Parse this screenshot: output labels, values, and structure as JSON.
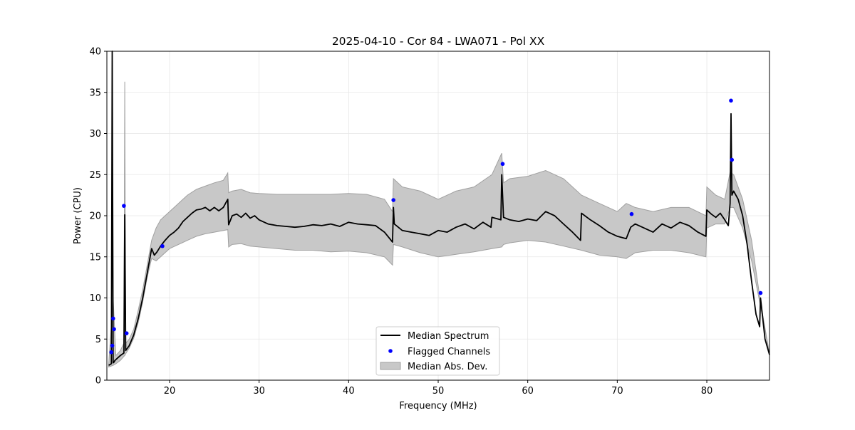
{
  "chart_data": {
    "type": "line",
    "title": "2025-04-10 - Cor 84 - LWA071 - Pol XX",
    "xlabel": "Frequency (MHz)",
    "ylabel": "Power (CPU)",
    "xlim": [
      13.0,
      87.0
    ],
    "ylim": [
      0,
      40
    ],
    "xticks": [
      20,
      30,
      40,
      50,
      60,
      70,
      80
    ],
    "yticks": [
      0,
      5,
      10,
      15,
      20,
      25,
      30,
      35,
      40
    ],
    "grid": true,
    "legend_position": "lower-center",
    "legend": [
      "Median Spectrum",
      "Flagged Channels",
      "Median Abs. Dev."
    ],
    "colors": {
      "median": "#000000",
      "flagged": "#0000ff",
      "mad": "#c8c8c8",
      "mad_edge": "#a0a0a0"
    },
    "series": [
      {
        "name": "Median Spectrum",
        "x": [
          13.2,
          13.5,
          13.6,
          13.7,
          13.8,
          13.9,
          14.0,
          14.2,
          14.5,
          14.9,
          15.0,
          15.1,
          15.5,
          16.0,
          16.5,
          17.0,
          17.5,
          18.0,
          18.3,
          18.6,
          19.0,
          19.5,
          20.0,
          20.5,
          21.0,
          21.5,
          22.0,
          22.5,
          23.0,
          23.5,
          24.0,
          24.5,
          25.0,
          25.5,
          26.0,
          26.5,
          26.6,
          27.0,
          27.5,
          28.0,
          28.5,
          29.0,
          29.5,
          30.0,
          31.0,
          32.0,
          33.0,
          34.0,
          35.0,
          36.0,
          37.0,
          38.0,
          39.0,
          40.0,
          41.0,
          42.0,
          43.0,
          44.0,
          44.9,
          45.0,
          45.1,
          46.0,
          47.0,
          48.0,
          49.0,
          50.0,
          51.0,
          52.0,
          53.0,
          54.0,
          55.0,
          55.9,
          56.0,
          57.0,
          57.1,
          57.3,
          58.0,
          59.0,
          60.0,
          61.0,
          62.0,
          63.0,
          64.0,
          65.0,
          65.9,
          66.0,
          67.0,
          68.0,
          69.0,
          70.0,
          71.0,
          71.5,
          72.0,
          73.0,
          74.0,
          75.0,
          76.0,
          77.0,
          78.0,
          79.0,
          79.9,
          80.0,
          80.5,
          81.0,
          81.5,
          82.0,
          82.4,
          82.6,
          82.7,
          82.8,
          83.0,
          83.5,
          84.0,
          84.5,
          85.0,
          85.5,
          85.9,
          86.0,
          86.5,
          87.0
        ],
        "y": [
          1.8,
          2.0,
          40.0,
          2.1,
          2.2,
          2.4,
          2.5,
          2.7,
          3.0,
          3.3,
          20.1,
          3.6,
          4.2,
          5.5,
          7.5,
          10.0,
          13.0,
          16.0,
          15.2,
          15.6,
          16.3,
          17.0,
          17.6,
          18.0,
          18.5,
          19.3,
          19.8,
          20.3,
          20.7,
          20.8,
          21.0,
          20.6,
          21.0,
          20.6,
          21.0,
          22.0,
          18.9,
          20.0,
          20.2,
          19.8,
          20.3,
          19.7,
          20.0,
          19.5,
          19.0,
          18.8,
          18.7,
          18.6,
          18.7,
          18.9,
          18.8,
          19.0,
          18.7,
          19.2,
          19.0,
          18.9,
          18.8,
          18.0,
          16.8,
          21.0,
          19.0,
          18.2,
          18.0,
          17.8,
          17.6,
          18.2,
          18.0,
          18.6,
          19.0,
          18.4,
          19.2,
          18.6,
          19.8,
          19.5,
          25.0,
          19.8,
          19.5,
          19.3,
          19.6,
          19.4,
          20.5,
          20.0,
          19.0,
          18.0,
          17.0,
          20.3,
          19.5,
          18.8,
          18.0,
          17.5,
          17.2,
          18.6,
          19.0,
          18.5,
          18.0,
          19.0,
          18.5,
          19.2,
          18.8,
          18.0,
          17.5,
          20.7,
          20.2,
          19.8,
          20.3,
          19.5,
          18.8,
          21.5,
          32.4,
          22.5,
          23.0,
          22.0,
          20.0,
          16.5,
          12.0,
          8.0,
          6.5,
          10.0,
          5.0,
          3.1
        ]
      },
      {
        "name": "Median Abs. Dev.",
        "x": [
          13.2,
          13.7,
          14.0,
          14.5,
          14.9,
          15.0,
          15.1,
          15.5,
          16.0,
          16.5,
          17.0,
          17.5,
          18.0,
          18.5,
          19.0,
          20.0,
          21.0,
          22.0,
          23.0,
          24.0,
          25.0,
          26.0,
          26.5,
          26.6,
          27.0,
          28.0,
          29.0,
          30.0,
          32.0,
          34.0,
          36.0,
          38.0,
          40.0,
          42.0,
          44.0,
          44.9,
          45.0,
          46.0,
          48.0,
          50.0,
          52.0,
          54.0,
          56.0,
          57.1,
          57.3,
          58.0,
          60.0,
          62.0,
          64.0,
          66.0,
          68.0,
          70.0,
          71.0,
          72.0,
          74.0,
          76.0,
          78.0,
          79.9,
          80.0,
          81.0,
          82.0,
          82.6,
          83.0,
          84.0,
          85.0,
          86.0,
          87.0
        ],
        "lower": [
          1.6,
          1.8,
          2.0,
          2.4,
          2.9,
          3.0,
          3.2,
          3.9,
          5.1,
          7.0,
          9.5,
          12.5,
          14.8,
          14.5,
          15.0,
          16.0,
          16.5,
          17.0,
          17.5,
          17.8,
          18.0,
          18.2,
          18.3,
          16.2,
          16.5,
          16.6,
          16.3,
          16.2,
          16.0,
          15.8,
          15.8,
          15.6,
          15.7,
          15.5,
          15.0,
          14.0,
          16.5,
          16.2,
          15.5,
          15.0,
          15.3,
          15.6,
          16.0,
          16.2,
          16.5,
          16.7,
          17.0,
          16.8,
          16.3,
          15.8,
          15.2,
          15.0,
          14.8,
          15.5,
          15.8,
          15.8,
          15.5,
          15.0,
          18.5,
          19.0,
          19.0,
          21.0,
          21.0,
          18.5,
          14.5,
          9.0,
          3.0
        ],
        "upper": [
          1.9,
          10.0,
          3.0,
          3.6,
          4.5,
          36.3,
          4.5,
          5.0,
          6.2,
          8.5,
          11.0,
          14.0,
          17.0,
          18.5,
          19.5,
          20.5,
          21.5,
          22.5,
          23.2,
          23.6,
          24.0,
          24.3,
          25.2,
          22.8,
          23.0,
          23.2,
          22.8,
          22.7,
          22.6,
          22.6,
          22.6,
          22.6,
          22.7,
          22.6,
          22.0,
          20.5,
          24.5,
          23.5,
          23.0,
          22.0,
          23.0,
          23.5,
          25.0,
          27.6,
          24.0,
          24.5,
          24.8,
          25.5,
          24.5,
          22.5,
          21.5,
          20.5,
          21.5,
          21.0,
          20.5,
          21.0,
          21.0,
          20.0,
          23.5,
          22.5,
          22.0,
          25.3,
          25.0,
          22.0,
          17.0,
          9.5,
          3.2
        ]
      },
      {
        "name": "Flagged Channels",
        "x": [
          13.5,
          13.6,
          13.7,
          13.8,
          14.9,
          15.2,
          19.2,
          45.0,
          57.2,
          71.6,
          82.7,
          82.8,
          86.0
        ],
        "y": [
          3.4,
          4.2,
          7.5,
          6.2,
          21.2,
          5.7,
          16.3,
          21.9,
          26.3,
          20.2,
          34.0,
          26.8,
          10.6
        ]
      }
    ]
  }
}
